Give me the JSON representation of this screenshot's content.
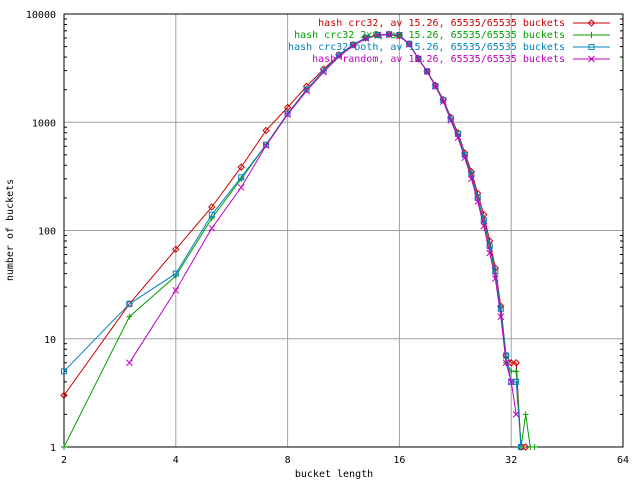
{
  "chart_data": {
    "type": "line",
    "title": "",
    "xlabel": "bucket length",
    "ylabel": "number of buckets",
    "x_scale": "log2",
    "y_scale": "log10",
    "xlim": [
      2,
      64
    ],
    "ylim": [
      1,
      10000
    ],
    "x_ticks": [
      2,
      4,
      8,
      16,
      32,
      64
    ],
    "y_ticks": [
      1,
      10,
      100,
      1000,
      10000
    ],
    "grid": true,
    "legend_position": "top-right",
    "series": [
      {
        "name": "hash crc32, av 15.26, 65535/65535 buckets",
        "color": "#cc0000",
        "marker": "diamond",
        "x": [
          2,
          3,
          4,
          5,
          6,
          7,
          8,
          9,
          10,
          11,
          12,
          13,
          14,
          15,
          16,
          17,
          18,
          19,
          20,
          21,
          22,
          23,
          24,
          25,
          26,
          27,
          28,
          29,
          30,
          31,
          32,
          33,
          34,
          35
        ],
        "y": [
          3,
          21,
          67,
          165,
          385,
          840,
          1370,
          2150,
          3100,
          4200,
          5200,
          6000,
          6400,
          6500,
          6300,
          5300,
          3850,
          2950,
          2200,
          1620,
          1110,
          800,
          520,
          350,
          220,
          140,
          80,
          45,
          20,
          7,
          6,
          6,
          1,
          1
        ]
      },
      {
        "name": "hash crc32 2x6, av 15.26, 65535/65535 buckets",
        "color": "#00a000",
        "marker": "plus",
        "x": [
          2,
          3,
          4,
          5,
          6,
          7,
          8,
          9,
          10,
          11,
          12,
          13,
          14,
          15,
          16,
          17,
          18,
          19,
          20,
          21,
          22,
          23,
          24,
          25,
          26,
          27,
          28,
          29,
          30,
          31,
          32,
          33,
          34,
          35,
          36,
          37
        ],
        "y": [
          1,
          16,
          38,
          130,
          300,
          620,
          1200,
          2000,
          3000,
          4150,
          5150,
          6000,
          6350,
          6450,
          6300,
          5300,
          3900,
          2950,
          2200,
          1580,
          1070,
          760,
          500,
          320,
          200,
          120,
          70,
          40,
          18,
          6,
          5,
          5,
          1,
          2,
          1,
          1
        ]
      },
      {
        "name": "hash crc32 both, av 15.26, 65535/65535 buckets",
        "color": "#0080c0",
        "marker": "square",
        "x": [
          2,
          3,
          4,
          5,
          6,
          7,
          8,
          9,
          10,
          11,
          12,
          13,
          14,
          15,
          16,
          17,
          18,
          19,
          20,
          21,
          22,
          23,
          24,
          25,
          26,
          27,
          28,
          29,
          30,
          31,
          32,
          33,
          34
        ],
        "y": [
          5,
          21,
          40,
          140,
          310,
          620,
          1200,
          2000,
          3000,
          4150,
          5200,
          6050,
          6400,
          6500,
          6400,
          5300,
          3850,
          2950,
          2150,
          1600,
          1080,
          780,
          500,
          330,
          200,
          125,
          72,
          42,
          19,
          7,
          4,
          4,
          1
        ]
      },
      {
        "name": "hash random, av 15.26, 65535/65535 buckets",
        "color": "#c000c0",
        "marker": "cross",
        "x": [
          3,
          4,
          5,
          6,
          7,
          8,
          9,
          10,
          11,
          12,
          13,
          14,
          15,
          16,
          17,
          18,
          19,
          20,
          21,
          22,
          23,
          24,
          25,
          26,
          27,
          28,
          29,
          30,
          31,
          32,
          33
        ],
        "y": [
          6,
          28,
          105,
          250,
          610,
          1180,
          1950,
          2900,
          4050,
          5100,
          5950,
          6350,
          6450,
          6250,
          5250,
          3850,
          2950,
          2150,
          1550,
          1040,
          720,
          470,
          300,
          185,
          110,
          62,
          36,
          16,
          6,
          4,
          2
        ]
      }
    ]
  }
}
